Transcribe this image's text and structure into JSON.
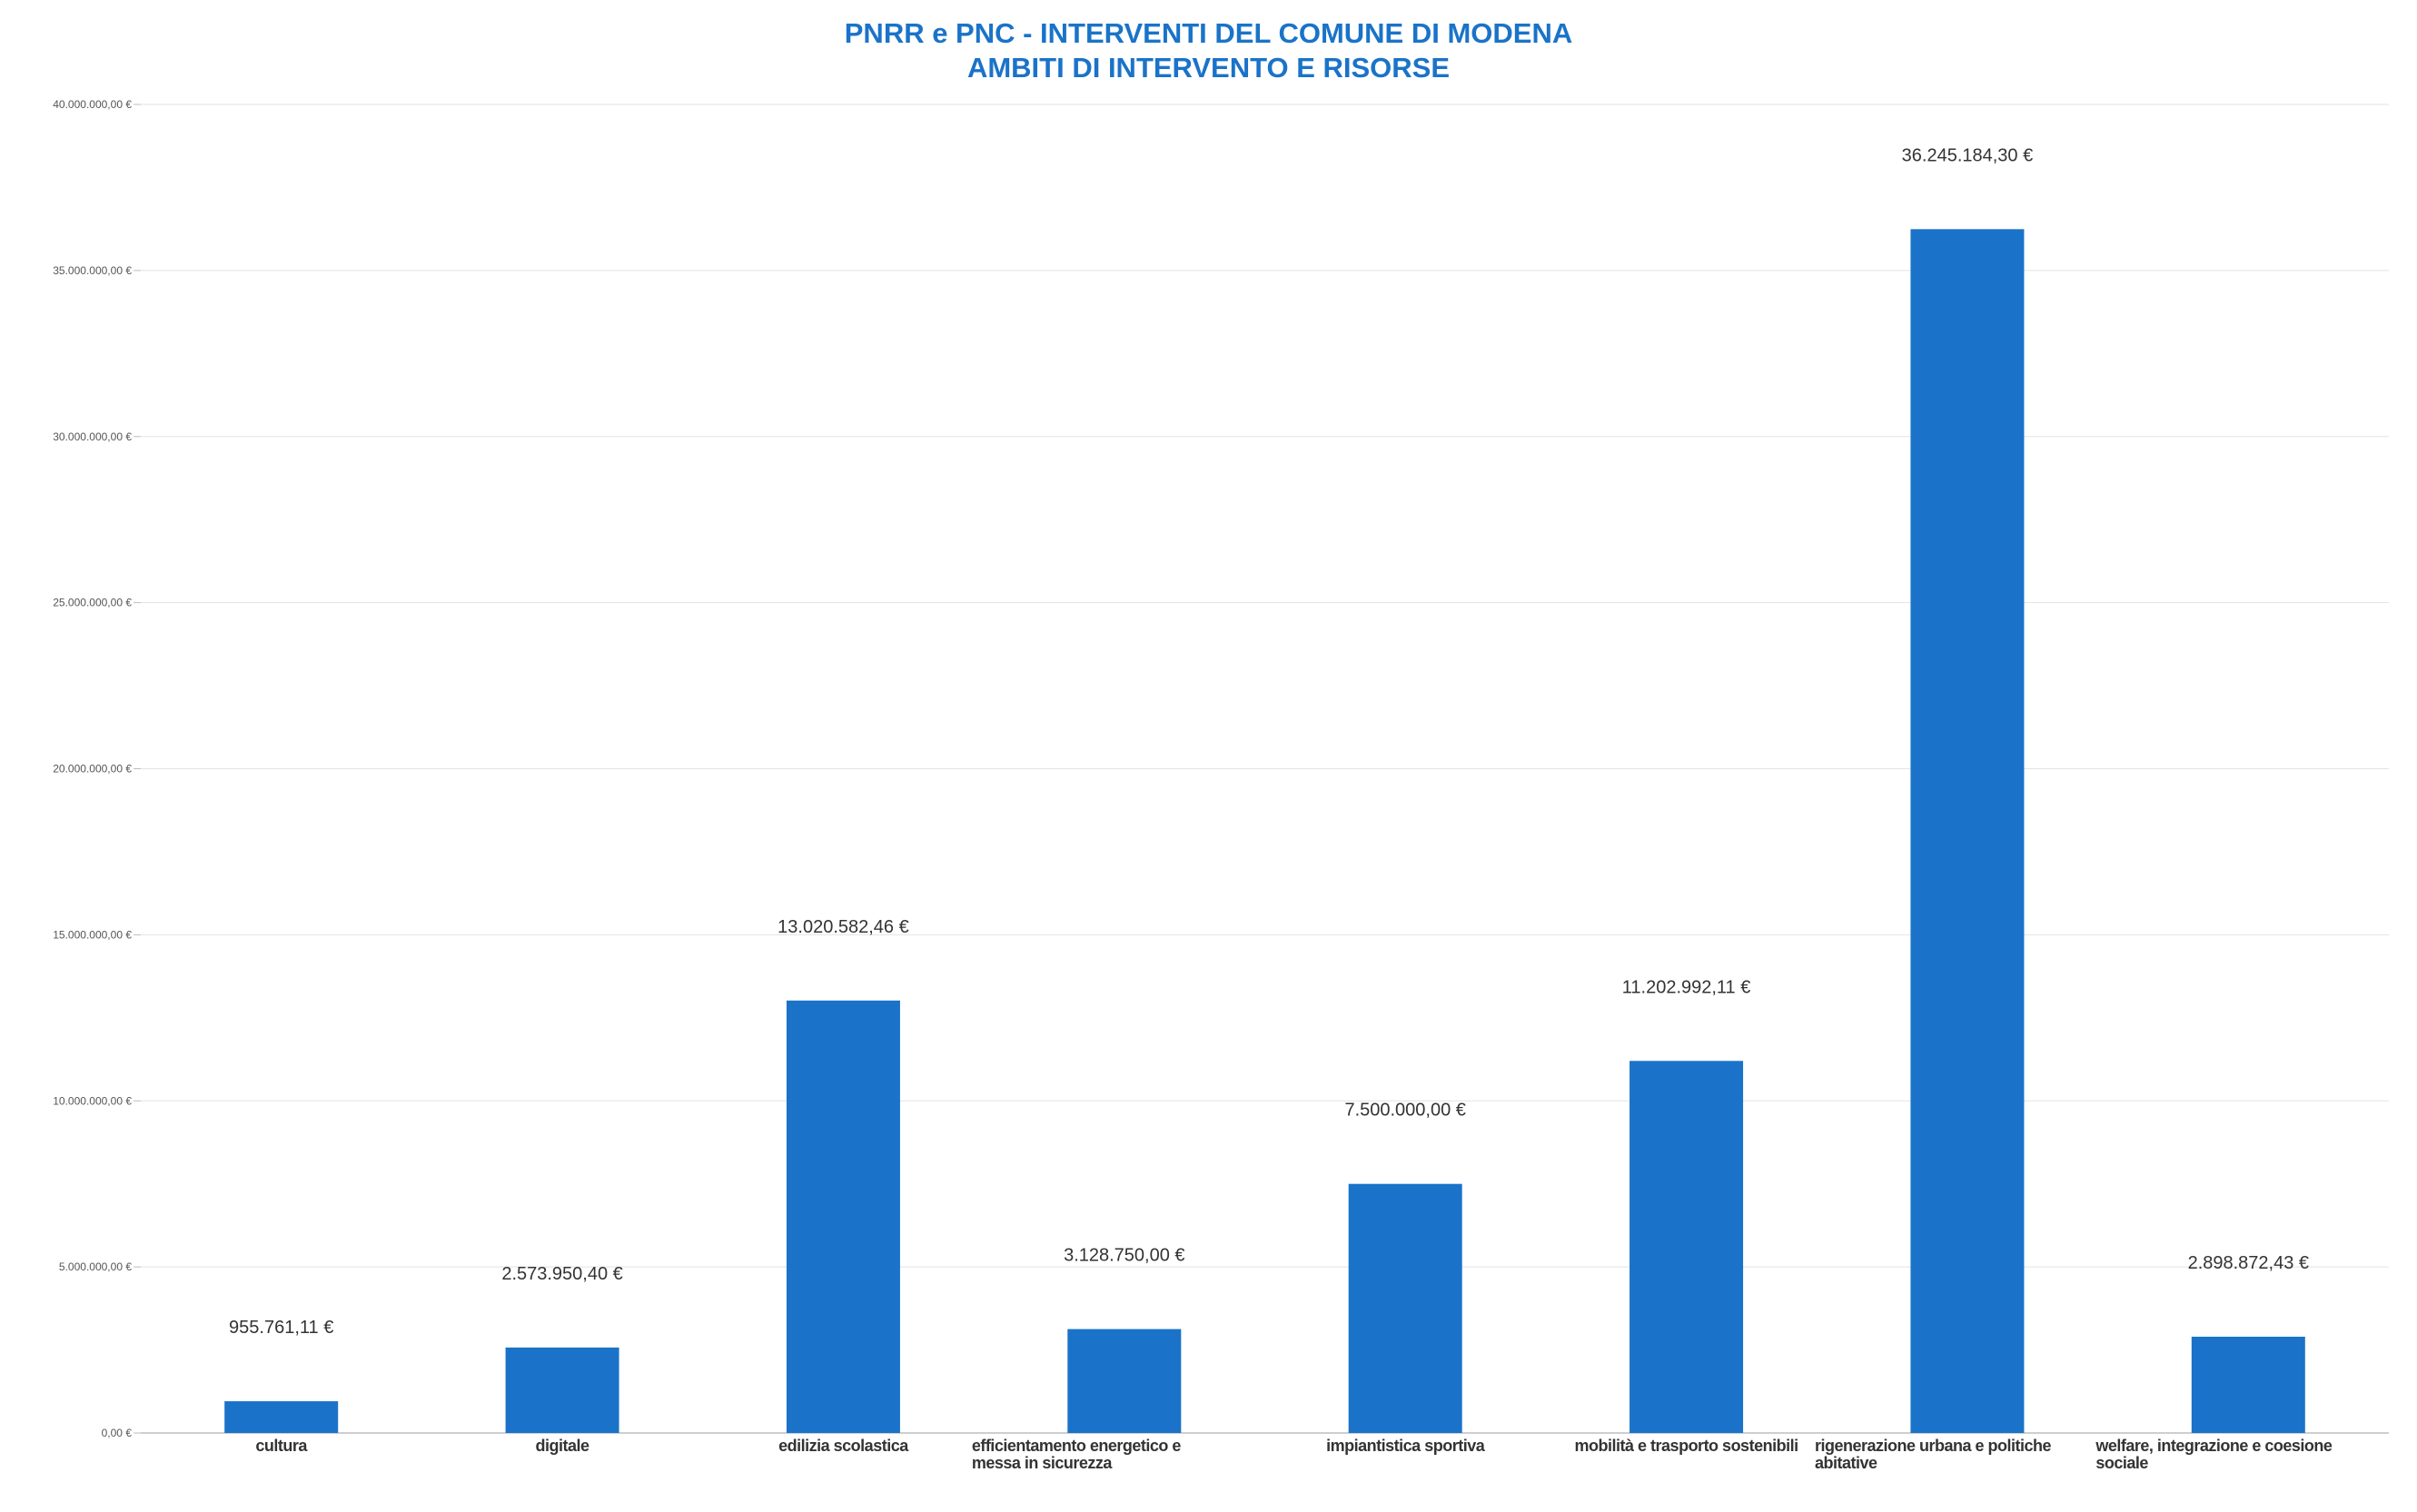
{
  "chart_data": {
    "type": "bar",
    "title": [
      "PNRR e PNC - INTERVENTI DEL COMUNE DI MODENA",
      "AMBITI DI INTERVENTO E RISORSE"
    ],
    "xlabel": "",
    "ylabel": "",
    "ylim": [
      0,
      40000000
    ],
    "yticks": [
      0,
      5000000,
      10000000,
      15000000,
      20000000,
      25000000,
      30000000,
      35000000,
      40000000
    ],
    "ytick_labels": [
      "0,00 €",
      "5.000.000,00 €",
      "10.000.000,00 €",
      "15.000.000,00 €",
      "20.000.000,00 €",
      "25.000.000,00 €",
      "30.000.000,00 €",
      "35.000.000,00 €",
      "40.000.000,00 €"
    ],
    "grid": true,
    "legend": "none",
    "bar_color": "#1a73c8",
    "categories": [
      [
        "cultura"
      ],
      [
        "digitale"
      ],
      [
        "edilizia scolastica"
      ],
      [
        "efficientamento energetico e",
        "messa in sicurezza"
      ],
      [
        "impiantistica sportiva"
      ],
      [
        "mobilità  e trasporto sostenibili"
      ],
      [
        "rigenerazione urbana e politiche",
        "abitative"
      ],
      [
        "welfare, integrazione e coesione",
        "sociale"
      ]
    ],
    "values": [
      955761.11,
      2573950.4,
      13020582.46,
      3128750.0,
      7500000.0,
      11202992.11,
      36245184.3,
      2898872.43
    ],
    "data_labels": [
      "955.761,11 €",
      "2.573.950,40 €",
      "13.020.582,46 €",
      "3.128.750,00 €",
      "7.500.000,00 €",
      "11.202.992,11 €",
      "36.245.184,30 €",
      "2.898.872,43 €"
    ]
  }
}
